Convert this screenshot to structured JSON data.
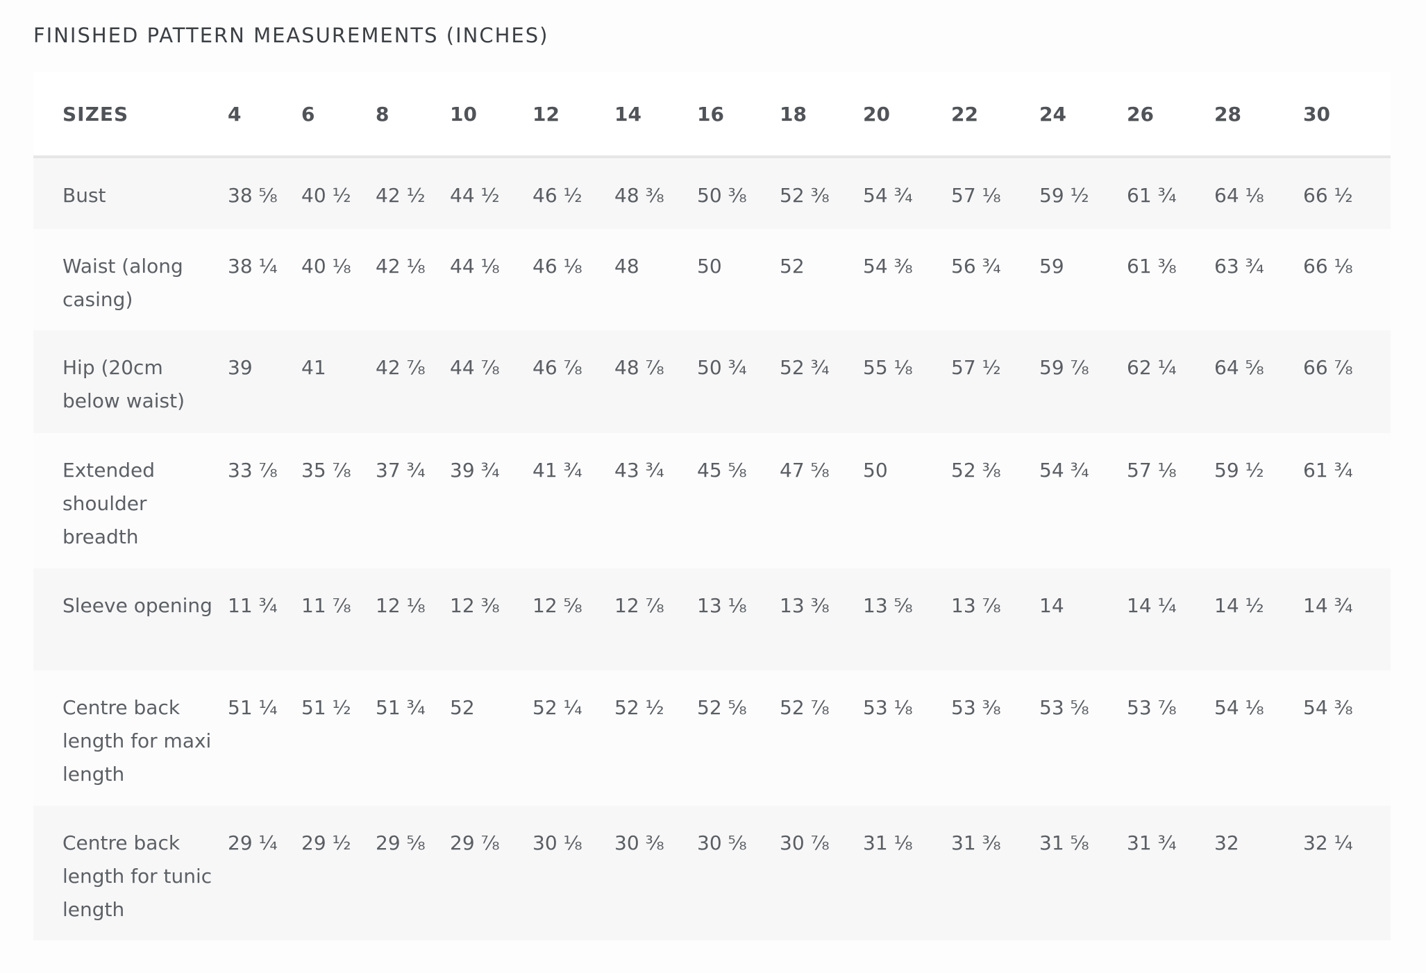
{
  "title": "FINISHED PATTERN MEASUREMENTS (INCHES)",
  "table": {
    "header_label": "SIZES",
    "sizes": [
      "4",
      "6",
      "8",
      "10",
      "12",
      "14",
      "16",
      "18",
      "20",
      "22",
      "24",
      "26",
      "28",
      "30"
    ],
    "rows": [
      {
        "label": "Bust",
        "values": [
          "38 ⅝",
          "40 ½",
          "42 ½",
          "44 ½",
          "46 ½",
          "48 ⅜",
          "50 ⅜",
          "52 ⅜",
          "54 ¾",
          "57 ⅛",
          "59 ½",
          "61 ¾",
          "64 ⅛",
          "66 ½"
        ]
      },
      {
        "label": "Waist (along casing)",
        "values": [
          "38 ¼",
          "40 ⅛",
          "42 ⅛",
          "44 ⅛",
          "46 ⅛",
          "48",
          "50",
          "52",
          "54 ⅜",
          "56 ¾",
          "59",
          "61 ⅜",
          "63 ¾",
          "66 ⅛"
        ]
      },
      {
        "label": "Hip (20cm below waist)",
        "values": [
          "39",
          "41",
          "42 ⅞",
          "44 ⅞",
          "46 ⅞",
          "48 ⅞",
          "50 ¾",
          "52 ¾",
          "55 ⅛",
          "57 ½",
          "59 ⅞",
          "62 ¼",
          "64 ⅝",
          "66 ⅞"
        ]
      },
      {
        "label": "Extended shoulder breadth",
        "values": [
          "33 ⅞",
          "35 ⅞",
          "37 ¾",
          "39 ¾",
          "41 ¾",
          "43 ¾",
          "45 ⅝",
          "47 ⅝",
          "50",
          "52 ⅜",
          "54 ¾",
          "57 ⅛",
          "59 ½",
          "61 ¾"
        ]
      },
      {
        "label": "Sleeve opening",
        "values": [
          "11 ¾",
          "11 ⅞",
          "12 ⅛",
          "12 ⅜",
          "12 ⅝",
          "12 ⅞",
          "13 ⅛",
          "13 ⅜",
          "13 ⅝",
          "13 ⅞",
          "14",
          "14 ¼",
          "14 ½",
          "14 ¾"
        ]
      },
      {
        "label": "Centre back length for maxi length",
        "values": [
          "51 ¼",
          "51 ½",
          "51 ¾",
          "52",
          "52 ¼",
          "52 ½",
          "52 ⅝",
          "52 ⅞",
          "53 ⅛",
          "53 ⅜",
          "53 ⅝",
          "53 ⅞",
          "54 ⅛",
          "54 ⅜"
        ]
      },
      {
        "label": "Centre back length for tunic length",
        "values": [
          "29 ¼",
          "29 ½",
          "29 ⅝",
          "29 ⅞",
          "30 ⅛",
          "30 ⅜",
          "30 ⅝",
          "30 ⅞",
          "31 ⅛",
          "31 ⅜",
          "31 ⅝",
          "31 ¾",
          "32",
          "32 ¼"
        ]
      }
    ]
  }
}
